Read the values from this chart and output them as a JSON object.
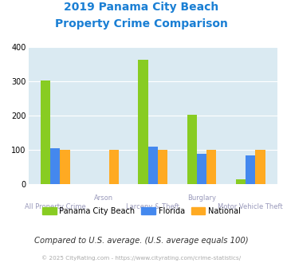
{
  "title_line1": "2019 Panama City Beach",
  "title_line2": "Property Crime Comparison",
  "categories": [
    "All Property Crime",
    "Arson",
    "Larceny & Theft",
    "Burglary",
    "Motor Vehicle Theft"
  ],
  "pcb_values": [
    303,
    0,
    363,
    202,
    13
  ],
  "florida_values": [
    105,
    0,
    110,
    88,
    85
  ],
  "national_values": [
    100,
    100,
    100,
    100,
    100
  ],
  "pcb_color": "#88cc22",
  "florida_color": "#4488ee",
  "national_color": "#ffaa22",
  "bg_color": "#daeaf2",
  "ylim": [
    0,
    400
  ],
  "yticks": [
    0,
    100,
    200,
    300,
    400
  ],
  "legend_labels": [
    "Panama City Beach",
    "Florida",
    "National"
  ],
  "note": "Compared to U.S. average. (U.S. average equals 100)",
  "copyright": "© 2025 CityRating.com - https://www.cityrating.com/crime-statistics/",
  "title_color": "#1a7fd4",
  "note_color": "#333333",
  "copyright_color": "#aaaaaa",
  "grid_color": "#ffffff",
  "label_color": "#9999bb"
}
